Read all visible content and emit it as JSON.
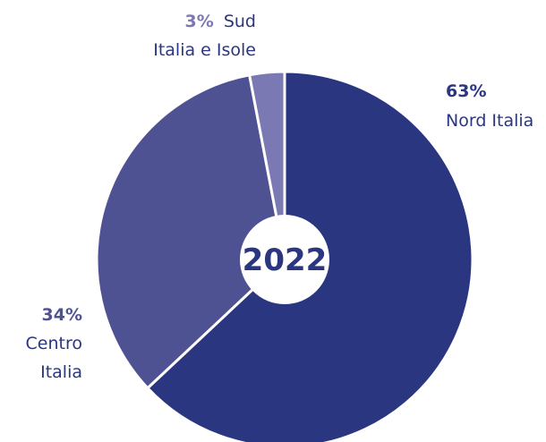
{
  "chart_data": {
    "type": "pie",
    "title": "",
    "center_label": "2022",
    "slices": [
      {
        "percent_label": "63%",
        "value": 63,
        "name_lines": [
          "Nord Italia"
        ],
        "color": "#2b3680"
      },
      {
        "percent_label": "34%",
        "value": 34,
        "name_lines": [
          "Centro",
          "Italia"
        ],
        "color": "#4f5292"
      },
      {
        "percent_label": "3%",
        "value": 3,
        "name_lines": [
          "Sud",
          "Italia e Isole"
        ],
        "color": "#7b79b4"
      }
    ]
  }
}
